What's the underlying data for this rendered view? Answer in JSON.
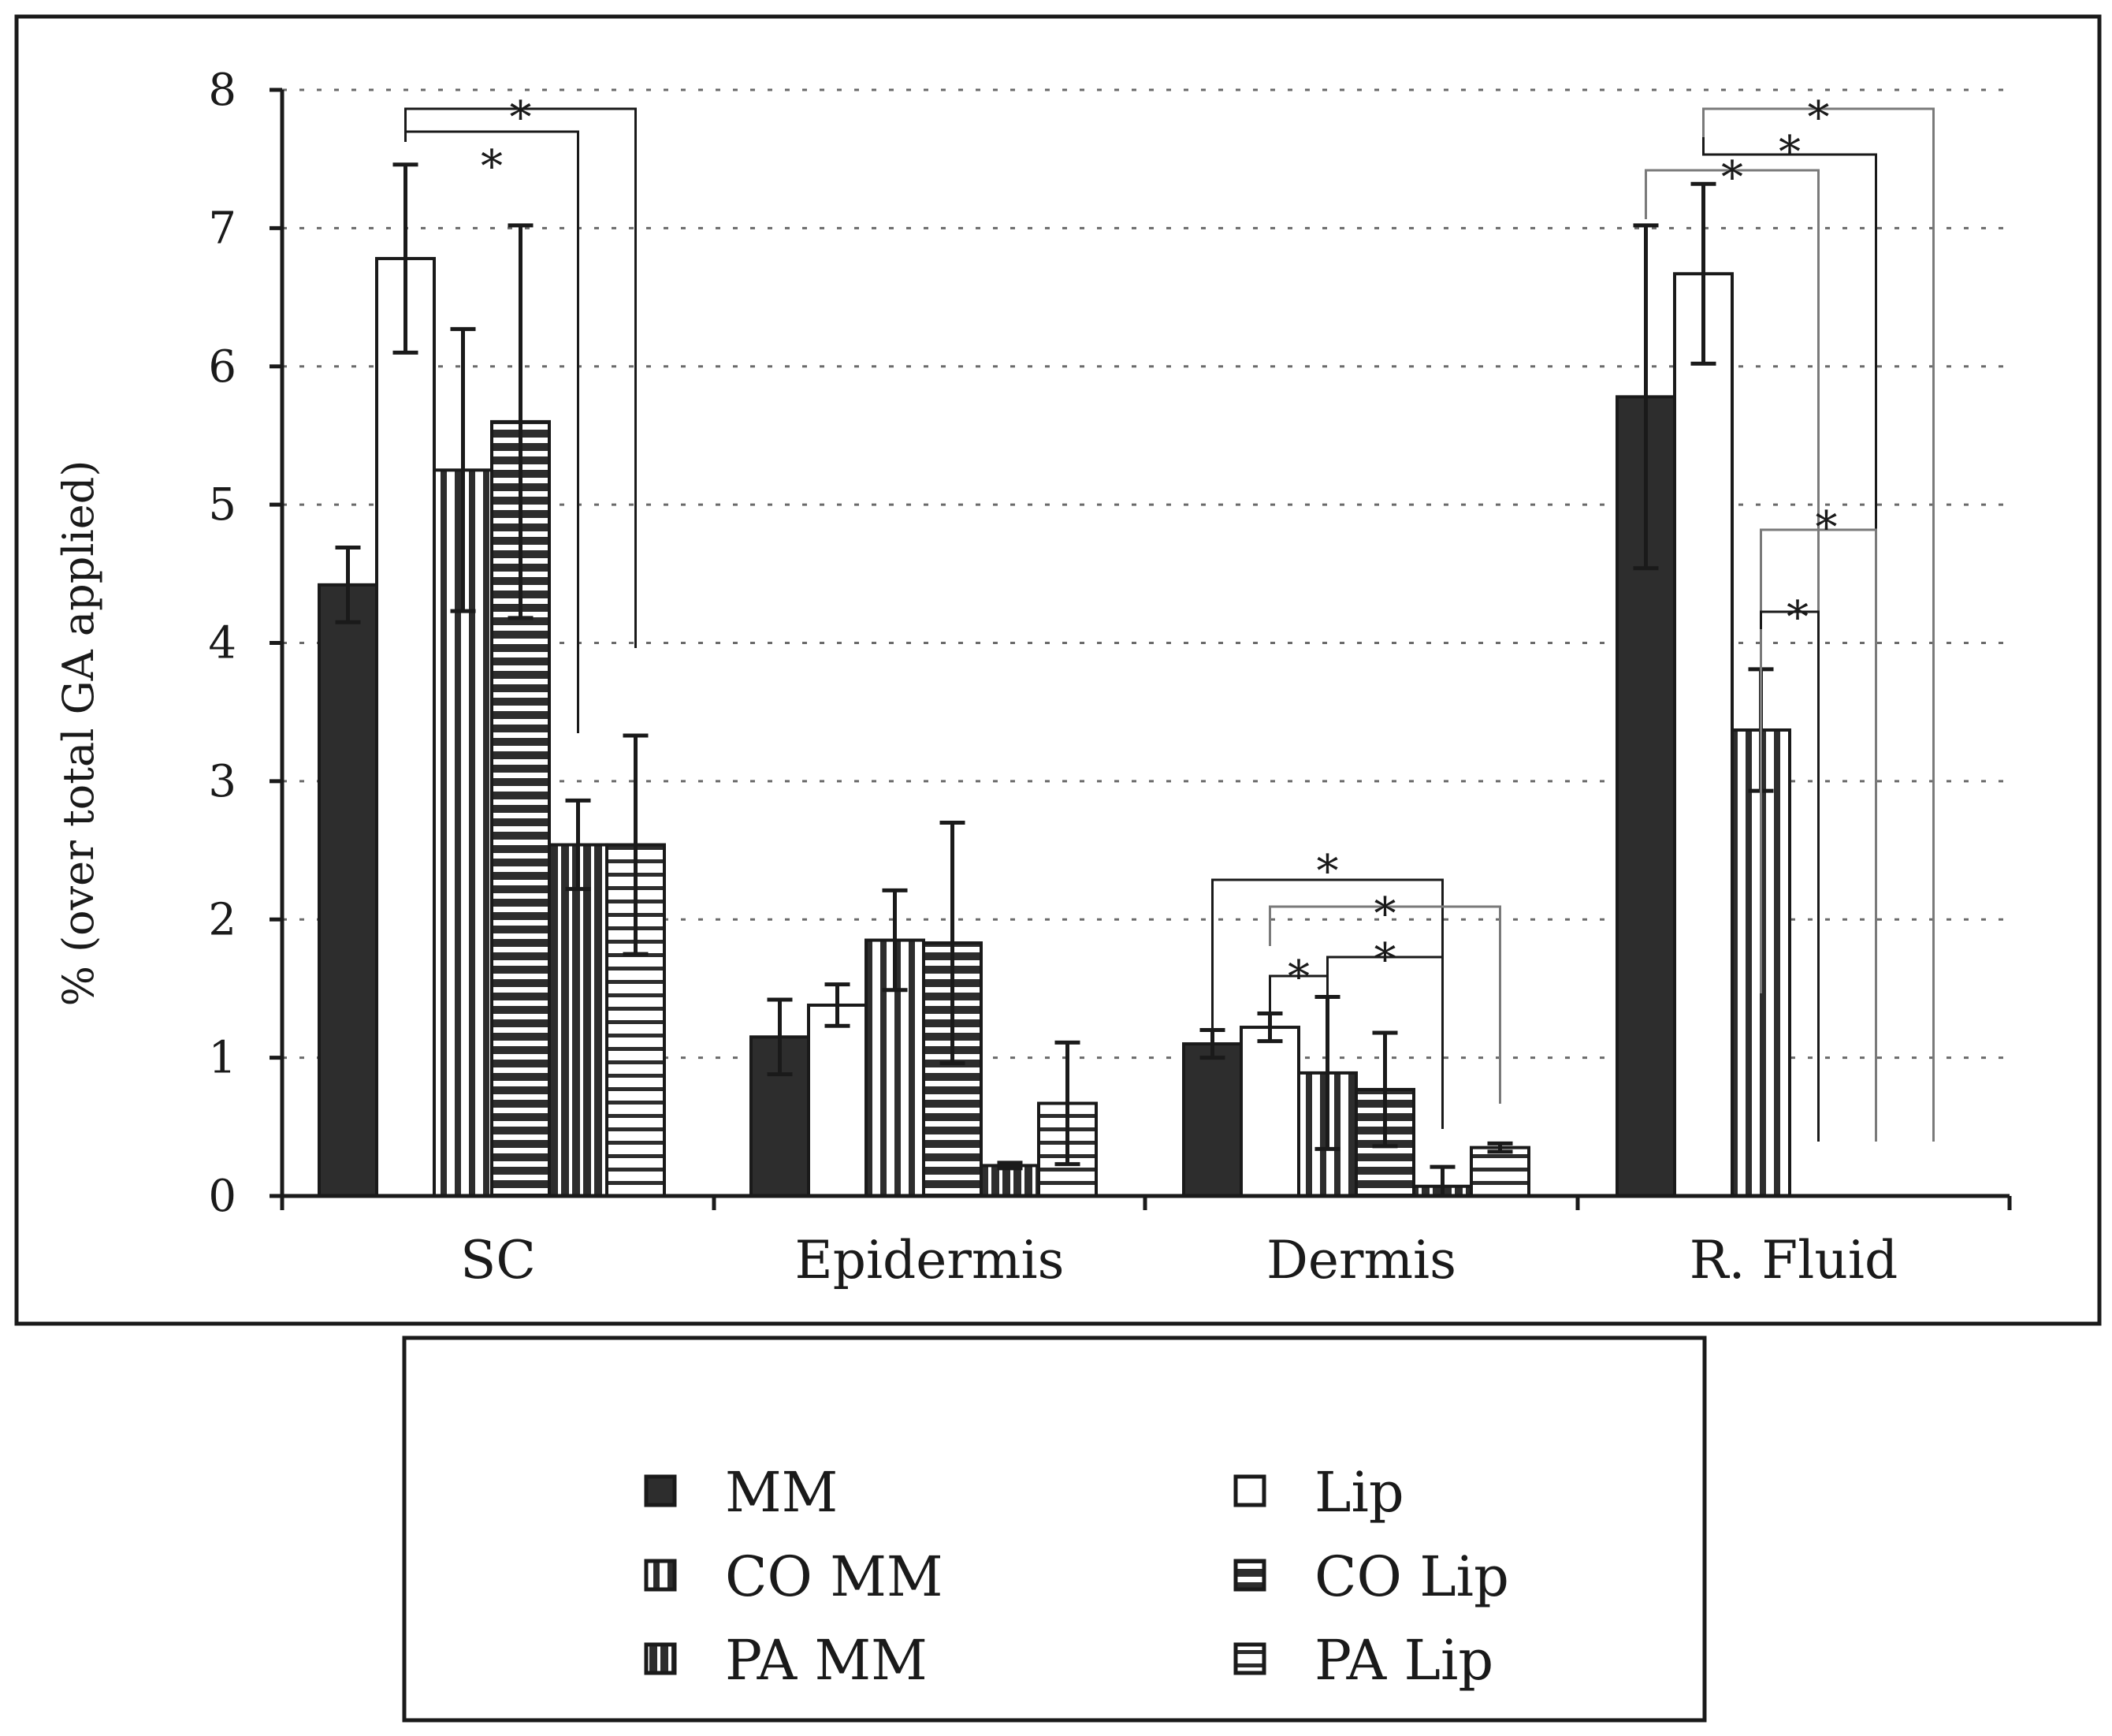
{
  "chart_data": {
    "type": "bar",
    "title": "",
    "xlabel": "",
    "ylabel": "% (over total GA applied)",
    "ylim": [
      0,
      8
    ],
    "yticks": [
      0,
      1,
      2,
      3,
      4,
      5,
      6,
      7,
      8
    ],
    "grid": "horizontal dotted",
    "categories": [
      "SC",
      "Epidermis",
      "Dermis",
      "R. Fluid"
    ],
    "series": [
      {
        "name": "MM",
        "pattern": "solid",
        "values": [
          4.42,
          1.15,
          1.1,
          5.78
        ],
        "errors": [
          0.27,
          0.27,
          0.1,
          1.24
        ]
      },
      {
        "name": "Lip",
        "pattern": "white",
        "values": [
          6.78,
          1.38,
          1.22,
          6.67
        ],
        "errors": [
          0.68,
          0.15,
          0.1,
          0.65
        ]
      },
      {
        "name": "CO MM",
        "pattern": "vertical-white",
        "values": [
          5.25,
          1.85,
          0.89,
          3.37
        ],
        "errors": [
          1.02,
          0.36,
          0.55,
          0.44
        ]
      },
      {
        "name": "CO Lip",
        "pattern": "horizontal-dark",
        "values": [
          5.6,
          1.83,
          0.77,
          null
        ],
        "errors": [
          1.42,
          0.87,
          0.41,
          null
        ]
      },
      {
        "name": "PA MM",
        "pattern": "vertical-dark",
        "values": [
          2.54,
          0.22,
          0.07,
          null
        ],
        "errors": [
          0.32,
          0.02,
          0.14,
          null
        ]
      },
      {
        "name": "PA Lip",
        "pattern": "horizontal-white",
        "values": [
          2.54,
          0.67,
          0.35,
          null
        ],
        "errors": [
          0.79,
          0.44,
          0.03,
          null
        ]
      }
    ],
    "significance": [
      {
        "category": "SC",
        "from": "Lip",
        "to": "PA Lip",
        "label": "*"
      },
      {
        "category": "SC",
        "from": "Lip",
        "to": "PA MM",
        "label": "*"
      },
      {
        "category": "Dermis",
        "from": "MM",
        "to": "PA MM",
        "label": "*"
      },
      {
        "category": "Dermis",
        "from": "Lip",
        "to": "PA Lip",
        "label": "*"
      },
      {
        "category": "Dermis",
        "from": "Lip",
        "to": "CO MM",
        "label": "*"
      },
      {
        "category": "Dermis",
        "from": "CO MM",
        "to": "PA MM",
        "label": "*"
      },
      {
        "category": "R. Fluid",
        "from": "Lip",
        "to": "PA Lip",
        "label": "*"
      },
      {
        "category": "R. Fluid",
        "from": "Lip",
        "to": "PA MM",
        "label": "*"
      },
      {
        "category": "R. Fluid",
        "from": "MM",
        "to": "CO Lip",
        "label": "*"
      },
      {
        "category": "R. Fluid",
        "from": "CO MM",
        "to": "PA MM",
        "label": "*"
      },
      {
        "category": "R. Fluid",
        "from": "CO MM",
        "to": "CO Lip",
        "label": "*"
      }
    ],
    "legend": {
      "placement": "below",
      "entries": [
        "MM",
        "Lip",
        "CO MM",
        "CO Lip",
        "PA MM",
        "PA Lip"
      ]
    }
  },
  "colors": {
    "dark": "#2d2d2d",
    "outline": "#1a1a1a",
    "grey_bracket": "#7a7a7a",
    "grid": "#6a6a6a",
    "background": "#ffffff"
  }
}
